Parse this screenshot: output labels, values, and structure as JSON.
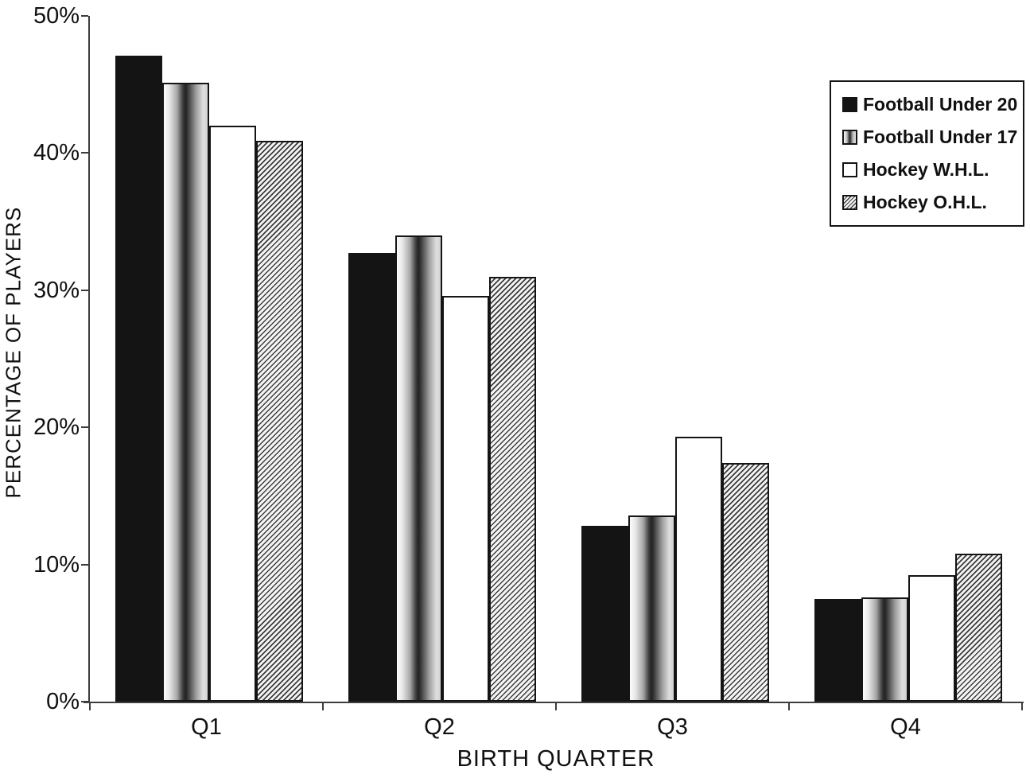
{
  "chart_data": {
    "type": "bar",
    "title": "",
    "xlabel": "BIRTH QUARTER",
    "ylabel": "PERCENTAGE OF PLAYERS",
    "categories": [
      "Q1",
      "Q2",
      "Q3",
      "Q4"
    ],
    "series": [
      {
        "name": "Football Under 20",
        "pattern": "solid-black",
        "values": [
          47.1,
          32.7,
          12.8,
          7.5
        ]
      },
      {
        "name": "Football Under 17",
        "pattern": "gradient",
        "values": [
          45.1,
          34.0,
          13.6,
          7.6
        ]
      },
      {
        "name": "Hockey W.H.L.",
        "pattern": "white",
        "values": [
          42.0,
          29.6,
          19.3,
          9.2
        ]
      },
      {
        "name": "Hockey O.H.L.",
        "pattern": "hatch",
        "values": [
          40.9,
          31.0,
          17.4,
          10.8
        ]
      }
    ],
    "ylim": [
      0,
      50
    ],
    "yticks": [
      0,
      10,
      20,
      30,
      40,
      50
    ],
    "ytick_labels": [
      "0%",
      "10%",
      "20%",
      "30%",
      "40%",
      "50%"
    ],
    "grid": false,
    "legend_position": "top-right",
    "colors": {
      "bar_black": "#141414",
      "axis": "#3d3d3d",
      "text": "#111111",
      "background": "#ffffff"
    }
  }
}
